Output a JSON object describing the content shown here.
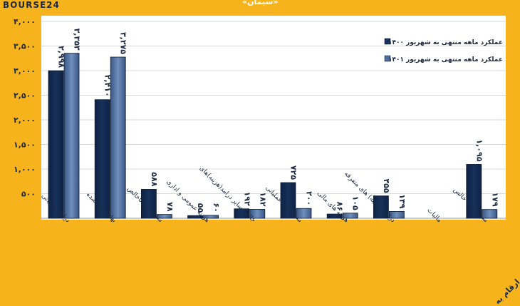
{
  "brand": "BOURSE24",
  "title": "«سیمان»",
  "corner_note": "ارقام به",
  "colors": {
    "background": "#f7b31c",
    "series_1400": "#17315a",
    "series_1401": "#4f6d99",
    "bar_outline": "#0d1a30",
    "grid": "#d9d9d9",
    "text": "#1d2b44"
  },
  "chart_data": {
    "type": "bar",
    "categories": [
      "درامد عملیاتی",
      "بهای تمام شده",
      "سود(زیان)ناخالص",
      "هزینه عمومی و اداری",
      "خالص سایر درامد(هزینه)های",
      "سود(زیان)عملیاتی",
      "هزینه های مالی",
      "درامد (هزینه) های متفرقه",
      "مالیات",
      "سود(زیان) خالص"
    ],
    "series": [
      {
        "name": "عملکرد ماهه منتهی به شهریور ۱۴۰۰",
        "values": [
          2998,
          2410,
          588,
          55,
          192,
          725,
          86,
          455,
          0,
          1095
        ],
        "labels": [
          "۲,۹۹۸",
          "۲,۴۱۰",
          "۵۸۸",
          "۵۵",
          "۱۹۲",
          "۷۲۵",
          "۸۶",
          "۴۵۵",
          "",
          "۱,۰۹۵"
        ]
      },
      {
        "name": "عملکرد ماهه منتهی به شهریور ۱۴۰۱",
        "values": [
          3353,
          3275,
          78,
          60,
          182,
          200,
          105,
          139,
          0,
          179
        ],
        "labels": [
          "۳,۳۵۳",
          "۳,۲۷۵",
          "۷۸",
          "۶۰",
          "۱۸۲",
          "۲۰۰",
          "۱۰۵",
          "۱۳۹",
          "",
          "۱۷۹"
        ]
      }
    ],
    "yticks": [
      "۴,۰۰۰",
      "۳,۵۰۰",
      "۳,۰۰۰",
      "۲,۵۰۰",
      "۲,۰۰۰",
      "۱,۵۰۰",
      "۱,۰۰۰",
      "۵۰۰"
    ],
    "ytick_values": [
      4000,
      3500,
      3000,
      2500,
      2000,
      1500,
      1000,
      500
    ],
    "ylim": [
      0,
      4000
    ],
    "grid": true,
    "legend_position": "top-right"
  }
}
